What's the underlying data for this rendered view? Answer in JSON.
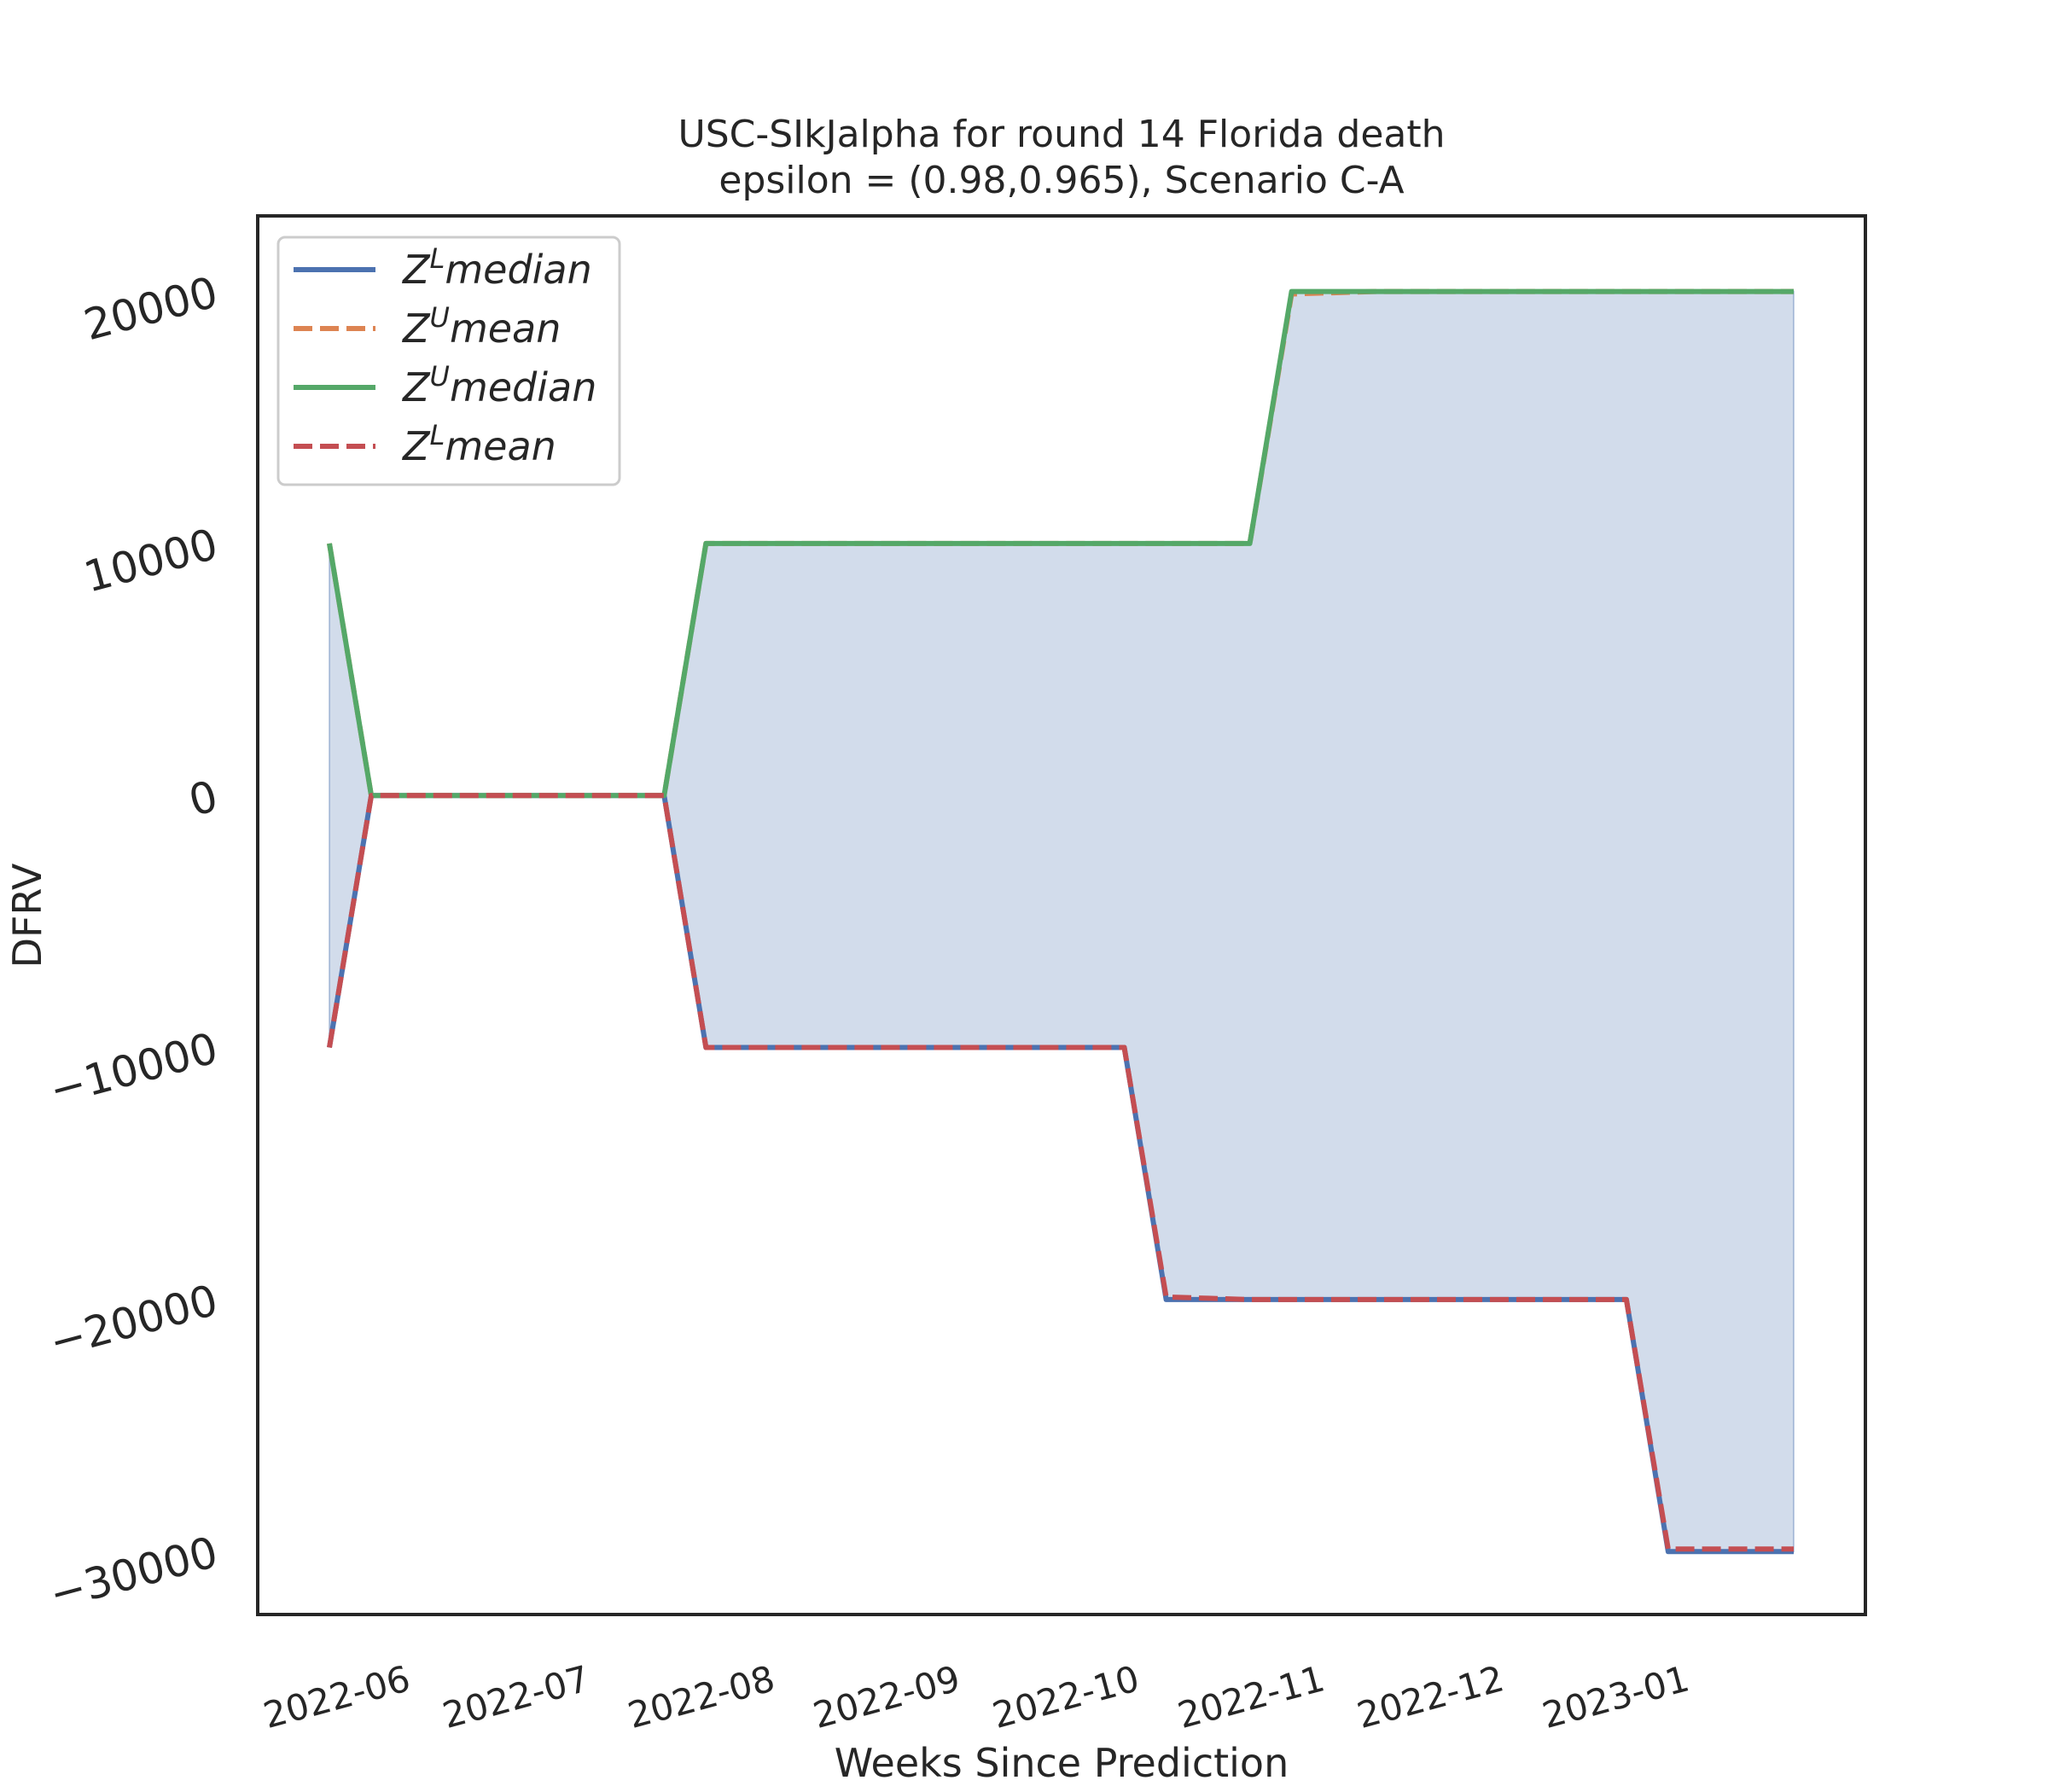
{
  "chart_data": {
    "type": "line",
    "title": "USC-SIkJalpha for round 14 Florida  death",
    "subtitle": "epsilon = (0.98,0.965), Scenario C-A",
    "xlabel": "Weeks Since Prediction",
    "ylabel": "DFRV",
    "x": [
      "2022-05-21",
      "2022-05-28",
      "2022-06-04",
      "2022-06-11",
      "2022-06-18",
      "2022-06-25",
      "2022-07-02",
      "2022-07-09",
      "2022-07-16",
      "2022-07-23",
      "2022-07-30",
      "2022-08-06",
      "2022-08-13",
      "2022-08-20",
      "2022-08-27",
      "2022-09-03",
      "2022-09-10",
      "2022-09-17",
      "2022-09-24",
      "2022-10-01",
      "2022-10-08",
      "2022-10-15",
      "2022-10-22",
      "2022-10-29",
      "2022-11-05",
      "2022-11-12",
      "2022-11-19",
      "2022-11-26",
      "2022-12-03",
      "2022-12-10",
      "2022-12-17",
      "2022-12-24",
      "2022-12-31",
      "2023-01-07",
      "2023-01-14",
      "2023-01-21"
    ],
    "xticks": [
      "2022-06-01",
      "2022-07-01",
      "2022-08-01",
      "2022-09-01",
      "2022-10-01",
      "2022-11-01",
      "2022-12-01",
      "2023-01-01"
    ],
    "xtick_labels": [
      "2022-06",
      "2022-07",
      "2022-08",
      "2022-09",
      "2022-10",
      "2022-11",
      "2022-12",
      "2023-01"
    ],
    "yticks": [
      20000,
      10000,
      0,
      -10000,
      -20000,
      -30000
    ],
    "ytick_labels": [
      "20000",
      "10000",
      "0",
      "−10000",
      "−20000",
      "−30000"
    ],
    "ylim": [
      -32500,
      23000
    ],
    "xlim": [
      "2022-05-09",
      "2023-02-02"
    ],
    "grid": false,
    "legend_position": "top-left",
    "legend": [
      {
        "base": "Z",
        "sup": "L",
        "text": "median"
      },
      {
        "base": "Z",
        "sup": "U",
        "text": "mean"
      },
      {
        "base": "Z",
        "sup": "U",
        "text": "median"
      },
      {
        "base": "Z",
        "sup": "L",
        "text": "mean"
      }
    ],
    "series": [
      {
        "name": "Z^L median",
        "color": "#4c72b0",
        "style": "solid",
        "values": [
          -10000,
          0,
          0,
          0,
          0,
          0,
          0,
          0,
          0,
          -10000,
          -10000,
          -10000,
          -10000,
          -10000,
          -10000,
          -10000,
          -10000,
          -10000,
          -10000,
          -10000,
          -20000,
          -20000,
          -20000,
          -20000,
          -20000,
          -20000,
          -20000,
          -20000,
          -20000,
          -20000,
          -20000,
          -20000,
          -30000,
          -30000,
          -30000,
          -30000
        ]
      },
      {
        "name": "Z^U mean",
        "color": "#dd8452",
        "style": "dashed",
        "values": [
          10000,
          0,
          0,
          0,
          0,
          0,
          0,
          0,
          0,
          10000,
          10000,
          10000,
          10000,
          10000,
          10000,
          10000,
          10000,
          10000,
          10000,
          10000,
          10000,
          10000,
          10000,
          19900,
          19950,
          20000,
          20000,
          20000,
          20000,
          20000,
          20000,
          20000,
          20000,
          20000,
          20000,
          20000
        ]
      },
      {
        "name": "Z^U median",
        "color": "#55a868",
        "style": "solid",
        "values": [
          10000,
          0,
          0,
          0,
          0,
          0,
          0,
          0,
          0,
          10000,
          10000,
          10000,
          10000,
          10000,
          10000,
          10000,
          10000,
          10000,
          10000,
          10000,
          10000,
          10000,
          10000,
          20000,
          20000,
          20000,
          20000,
          20000,
          20000,
          20000,
          20000,
          20000,
          20000,
          20000,
          20000,
          20000
        ]
      },
      {
        "name": "Z^L mean",
        "color": "#c44e52",
        "style": "dashed",
        "values": [
          -10000,
          0,
          0,
          0,
          0,
          0,
          0,
          0,
          0,
          -10000,
          -10000,
          -10000,
          -10000,
          -10000,
          -10000,
          -10000,
          -10000,
          -10000,
          -10000,
          -10000,
          -19900,
          -19950,
          -20000,
          -20000,
          -20000,
          -20000,
          -20000,
          -20000,
          -20000,
          -20000,
          -20000,
          -20000,
          -29900,
          -29900,
          -29900,
          -29900
        ]
      }
    ],
    "fill_between": {
      "lower": "Z^L median",
      "upper": "Z^U median",
      "color": "#4c72b0",
      "opacity": 0.25
    }
  }
}
